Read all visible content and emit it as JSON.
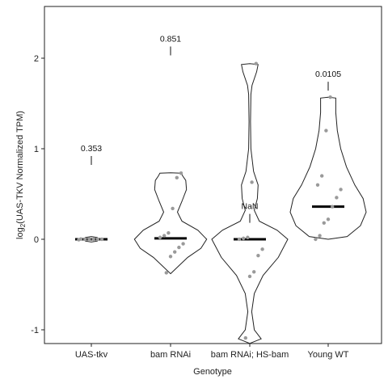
{
  "chart_data": {
    "type": "violin",
    "xlabel": "Genotype",
    "ylabel": "log2(UAS-TKV Normalized TPM)",
    "ylabel_main": "log",
    "ylabel_sub": "2",
    "ylabel_rest": "(UAS-TKV Normalized TPM)",
    "ylim": [
      -1.15,
      2.45
    ],
    "yticks": [
      -1,
      0,
      1,
      2
    ],
    "ytick_labels": [
      "-1",
      "0",
      "1",
      "2"
    ],
    "grid": false,
    "categories": [
      "UAS-tkv",
      "bam RNAi",
      "bam RNAi; HS-bam",
      "Young WT"
    ],
    "groups": [
      {
        "name": "UAS-tkv",
        "median": 0.0,
        "annotation": "0.353",
        "annotation_y": 0.92,
        "points": [
          -0.005,
          0.0,
          0.0,
          0.0,
          0.002,
          0.0,
          0.003
        ],
        "violin": [
          [
            -0.03,
            0.0
          ],
          [
            -0.02,
            0.16
          ],
          [
            0.0,
            0.19
          ],
          [
            0.02,
            0.16
          ],
          [
            0.03,
            0.0
          ]
        ]
      },
      {
        "name": "bam RNAi",
        "median": 0.01,
        "annotation": "0.851",
        "annotation_y": 2.13,
        "points": [
          0.73,
          0.68,
          0.34,
          0.07,
          0.04,
          0.02,
          -0.05,
          -0.09,
          -0.14,
          -0.19,
          -0.37
        ],
        "violin": [
          [
            -0.38,
            0.0
          ],
          [
            -0.3,
            0.2
          ],
          [
            -0.2,
            0.45
          ],
          [
            -0.1,
            0.8
          ],
          [
            0.0,
            0.95
          ],
          [
            0.1,
            0.72
          ],
          [
            0.2,
            0.3
          ],
          [
            0.3,
            0.18
          ],
          [
            0.42,
            0.3
          ],
          [
            0.55,
            0.42
          ],
          [
            0.65,
            0.4
          ],
          [
            0.7,
            0.32
          ],
          [
            0.73,
            0.28
          ],
          [
            0.735,
            0.0
          ]
        ]
      },
      {
        "name": "bam RNAi; HS-bam",
        "median": 0.0,
        "annotation": "NaN",
        "annotation_y": 0.28,
        "points": [
          1.94,
          0.63,
          0.02,
          0.01,
          0.0,
          -0.11,
          -0.18,
          -0.36,
          -0.41,
          -1.09
        ],
        "violin": [
          [
            -1.15,
            0.0
          ],
          [
            -1.1,
            0.3
          ],
          [
            -1.0,
            0.12
          ],
          [
            -0.8,
            0.05
          ],
          [
            -0.6,
            0.12
          ],
          [
            -0.4,
            0.35
          ],
          [
            -0.2,
            0.75
          ],
          [
            0.0,
            1.0
          ],
          [
            0.1,
            0.72
          ],
          [
            0.2,
            0.25
          ],
          [
            0.32,
            0.12
          ],
          [
            0.45,
            0.2
          ],
          [
            0.6,
            0.22
          ],
          [
            0.75,
            0.1
          ],
          [
            1.0,
            0.03
          ],
          [
            1.3,
            0.02
          ],
          [
            1.6,
            0.03
          ],
          [
            1.7,
            0.06
          ],
          [
            1.85,
            0.18
          ],
          [
            1.93,
            0.22
          ],
          [
            1.94,
            0.0
          ]
        ]
      },
      {
        "name": "Young WT",
        "median": 0.36,
        "annotation": "0.0105",
        "annotation_y": 1.74,
        "points": [
          1.57,
          1.2,
          0.7,
          0.6,
          0.55,
          0.46,
          0.36,
          0.22,
          0.18,
          0.04,
          0.0
        ],
        "violin": [
          [
            0.0,
            0.0
          ],
          [
            0.03,
            0.5
          ],
          [
            0.15,
            0.85
          ],
          [
            0.3,
            1.0
          ],
          [
            0.45,
            0.92
          ],
          [
            0.6,
            0.7
          ],
          [
            0.8,
            0.48
          ],
          [
            1.0,
            0.33
          ],
          [
            1.2,
            0.24
          ],
          [
            1.4,
            0.2
          ],
          [
            1.56,
            0.2
          ],
          [
            1.57,
            0.0
          ]
        ]
      }
    ]
  }
}
